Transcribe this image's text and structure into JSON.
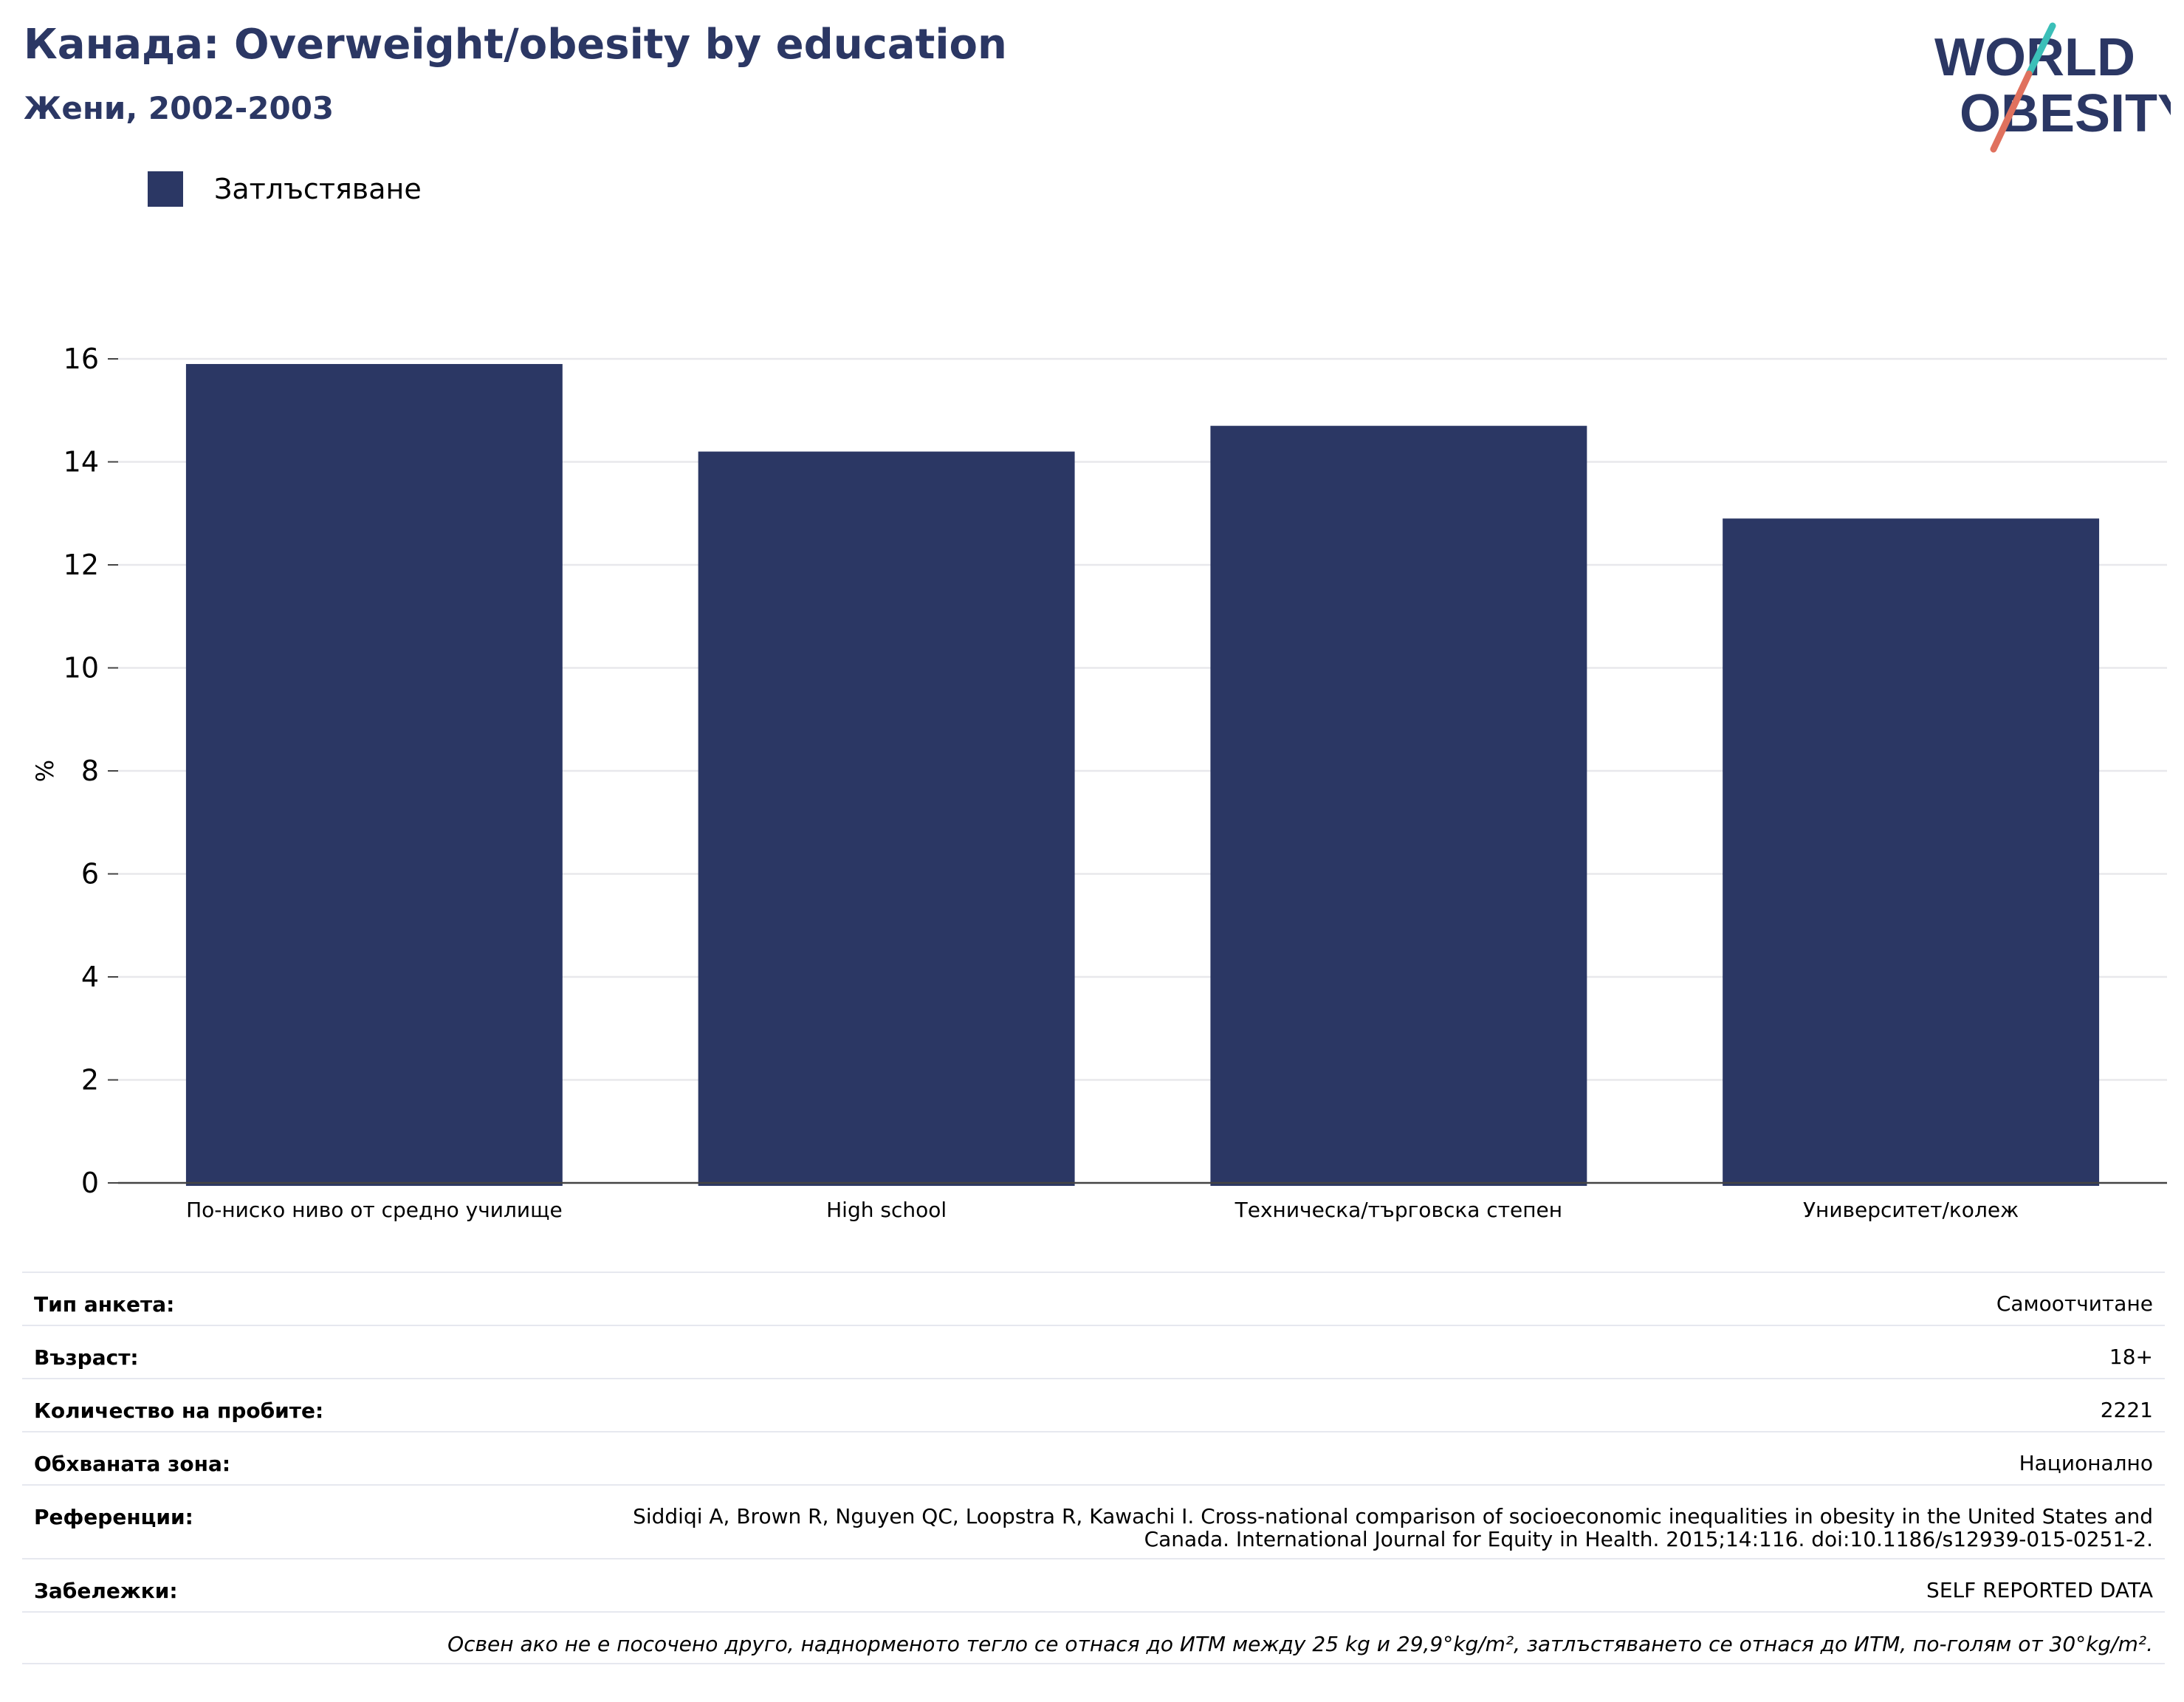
{
  "header": {
    "title": "Канада: Overweight/obesity by education",
    "subtitle": "Жени, 2002-2003"
  },
  "logo": {
    "line1": "WORLD",
    "line2": "OBESITY",
    "colors": {
      "text": "#2b3764",
      "slash_top": "#3bbfb8",
      "slash_bottom": "#e0715e"
    }
  },
  "legend": {
    "items": [
      {
        "label": "Затлъстяване",
        "color": "#2b3764"
      }
    ]
  },
  "chart_data": {
    "type": "bar",
    "categories": [
      "По-ниско ниво от средно училище",
      "High school",
      "Техническа/търговска степен",
      "Университет/колеж"
    ],
    "series": [
      {
        "name": "Затлъстяване",
        "values": [
          15.9,
          14.2,
          14.7,
          12.9
        ],
        "color": "#2b3764"
      }
    ],
    "ylabel": "%",
    "ylim": [
      0,
      16
    ],
    "yticks": [
      0,
      2,
      4,
      6,
      8,
      10,
      12,
      14,
      16
    ],
    "grid": true,
    "legend_position": "top-left"
  },
  "info": {
    "rows": [
      {
        "key": "Тип анкета:",
        "value": "Самоотчитане"
      },
      {
        "key": "Възраст:",
        "value": "18+"
      },
      {
        "key": "Количество на пробите:",
        "value": "2221"
      },
      {
        "key": "Обхваната зона:",
        "value": "Национално"
      },
      {
        "key": "Референции:",
        "value": "Siddiqi A, Brown R, Nguyen QC, Loopstra R, Kawachi I. Cross-national comparison of socioeconomic inequalities in obesity in the United States and Canada. International Journal for Equity in Health. 2015;14:116. doi:10.1186/s12939-015-0251-2."
      },
      {
        "key": "Забележки:",
        "value": "SELF REPORTED DATA"
      }
    ],
    "note": "Освен ако не е посочено друго, наднорменото тегло се отнася до ИТМ между 25 kg и 29,9°kg/m², затлъстяването се отнася до ИТМ, по-голям от 30°kg/m²."
  }
}
